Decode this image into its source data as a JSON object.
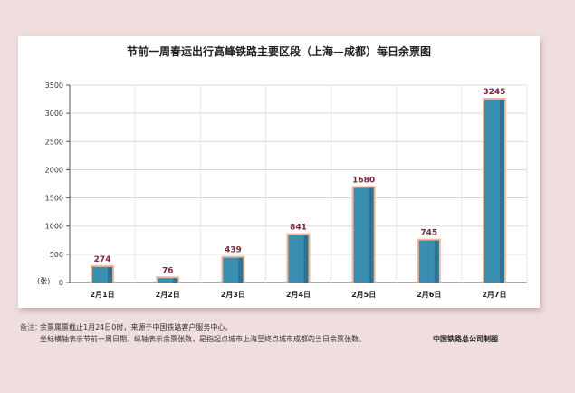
{
  "chart_data": {
    "type": "bar",
    "title": "节前一周春运出行高峰铁路主要区段（上海—成都）每日余票图",
    "ylabel": "(张)",
    "ylim": [
      0,
      3500
    ],
    "yticks": [
      0,
      500,
      1000,
      1500,
      2000,
      2500,
      3000,
      3500
    ],
    "categories": [
      "2月1日",
      "2月2日",
      "2月3日",
      "2月4日",
      "2月5日",
      "2月6日",
      "2月7日"
    ],
    "values": [
      274,
      76,
      439,
      841,
      1680,
      745,
      3245
    ],
    "data_labels": [
      "274",
      "76",
      "439",
      "841",
      "1680",
      "745",
      "3245"
    ],
    "grid": true,
    "colors": {
      "bar": "#3a8fb0",
      "bar_dark": "#1f5f7a",
      "bar_glow": "#f0b49a",
      "label": "#7a2a3a"
    }
  },
  "notes": {
    "label": "备注：",
    "line1": "余票属票截止1月24日0时，来源于中国铁路客户服务中心。",
    "line2": "坐标横轴表示节前一周日期，纵轴表示余票张数，是指起点城市上海至终点城市成都的当日余票张数。"
  },
  "credit": "中国铁路总公司制图"
}
